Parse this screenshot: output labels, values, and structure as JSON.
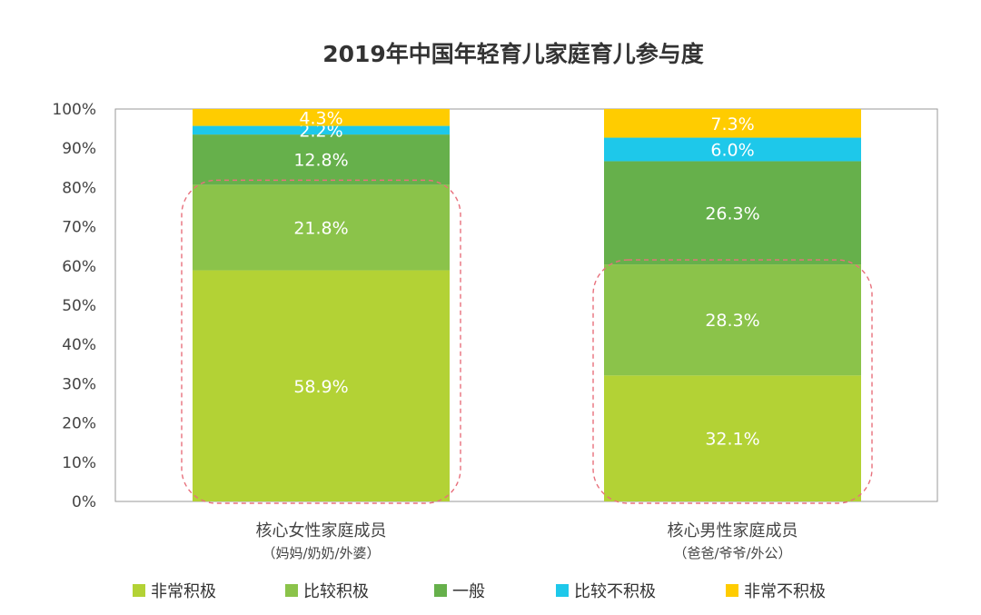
{
  "chart_data": {
    "type": "bar",
    "stacked": true,
    "title": "2019年中国年轻育儿家庭育儿参与度",
    "categories": [
      {
        "label": "核心女性家庭成员",
        "sublabel": "（妈妈/奶奶/外婆）"
      },
      {
        "label": "核心男性家庭成员",
        "sublabel": "（爸爸/爷爷/外公）"
      }
    ],
    "series": [
      {
        "name": "非常积极",
        "color": "#b3d235",
        "values": [
          58.9,
          32.1
        ]
      },
      {
        "name": "比较积极",
        "color": "#8bc34a",
        "values": [
          21.8,
          28.3
        ]
      },
      {
        "name": "一般",
        "color": "#66b04b",
        "values": [
          12.8,
          26.3
        ]
      },
      {
        "name": "比较不积极",
        "color": "#1ec8ea",
        "values": [
          2.2,
          6.0
        ]
      },
      {
        "name": "非常不积极",
        "color": "#ffcc00",
        "values": [
          4.3,
          7.3
        ]
      }
    ],
    "value_labels": [
      [
        "58.9%",
        "21.8%",
        "12.8%",
        "2.2%",
        "4.3%"
      ],
      [
        "32.1%",
        "28.3%",
        "26.3%",
        "6.0%",
        "7.3%"
      ]
    ],
    "y_ticks": [
      "0%",
      "10%",
      "20%",
      "30%",
      "40%",
      "50%",
      "60%",
      "70%",
      "80%",
      "90%",
      "100%"
    ],
    "ylim": [
      0,
      100
    ],
    "highlight": {
      "color": "#e8707c",
      "ranges": [
        [
          0,
          80.7
        ],
        [
          0,
          60.4
        ]
      ]
    },
    "legend_position": "bottom",
    "grid": false
  }
}
